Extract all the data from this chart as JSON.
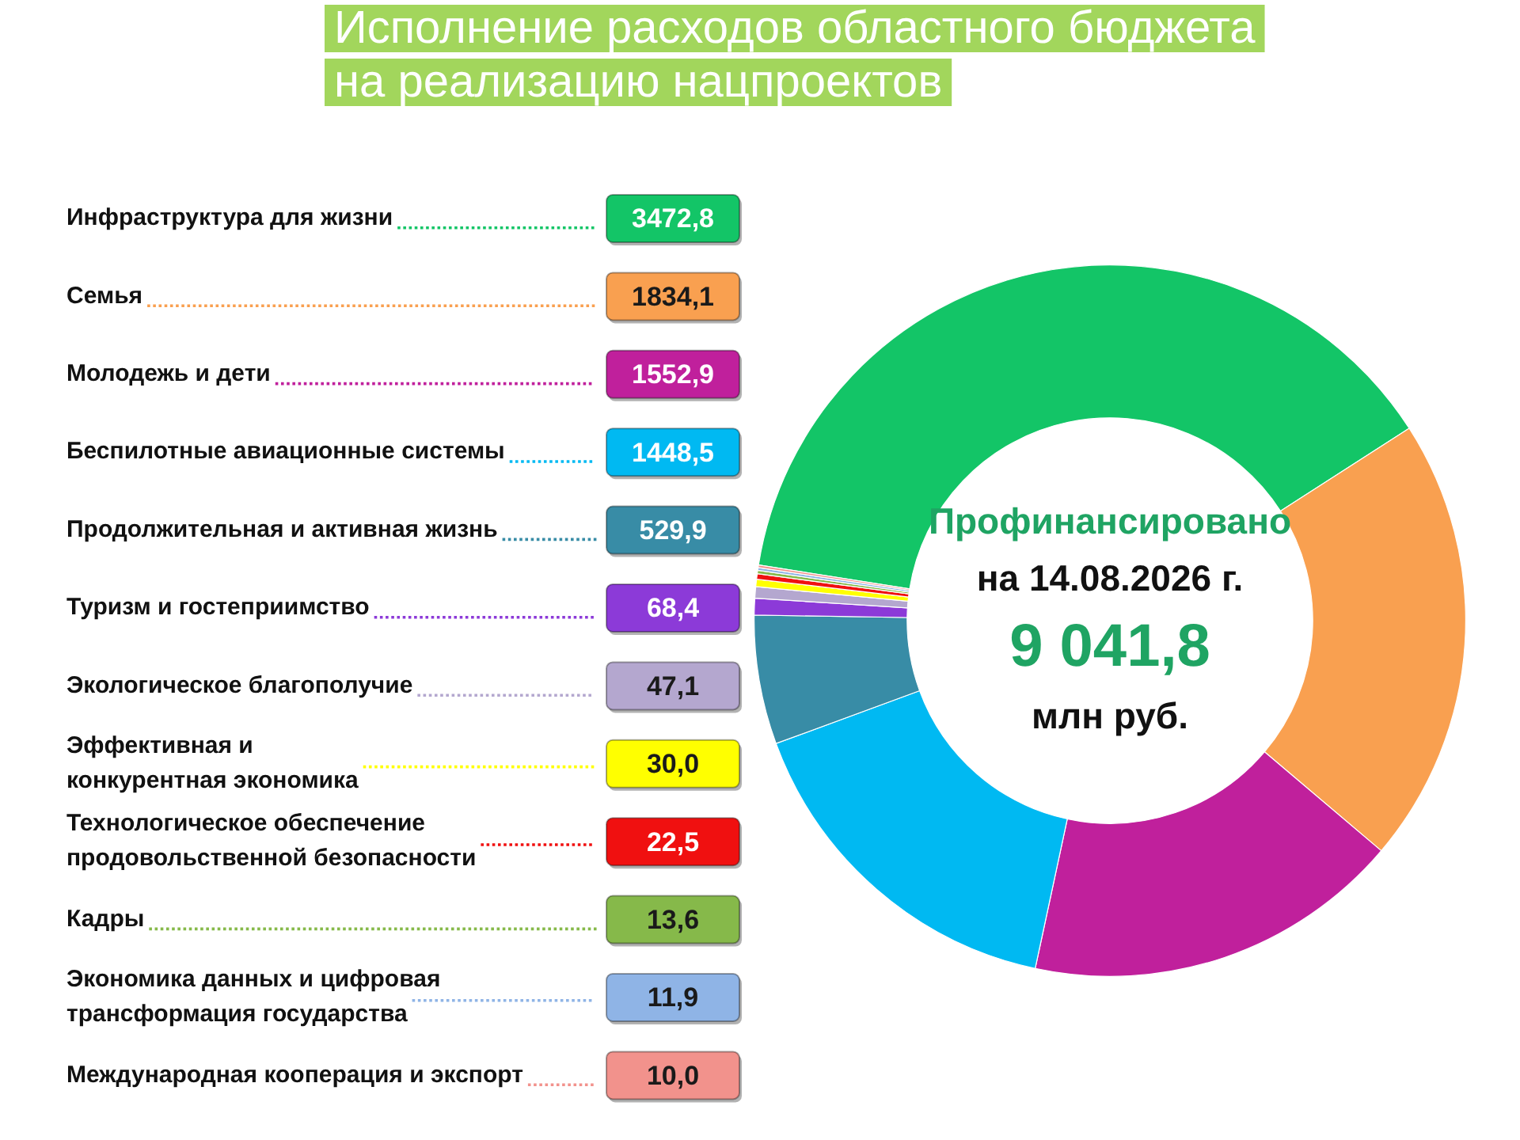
{
  "chart_data": {
    "type": "donut",
    "title": "Исполнение расходов областного бюджета на реализацию нацпроектов",
    "categories": [
      "Инфраструктура для жизни",
      "Семья",
      "Молодежь и дети",
      "Беспилотные авиационные системы",
      "Продолжительная и активная жизнь",
      "Туризм и гостеприимство",
      "Экологическое благополучие",
      "Эффективная и конкурентная экономика",
      "Технологическое обеспечение продовольственной безопасности",
      "Кадры",
      "Экономика данных и цифровая трансформация государства",
      "Международная кооперация и экспорт"
    ],
    "values": [
      3472.8,
      1834.1,
      1552.9,
      1448.5,
      529.9,
      68.4,
      47.1,
      30.0,
      22.5,
      13.6,
      11.9,
      10.0
    ],
    "value_labels": [
      "3472,8",
      "1834,1",
      "1552,9",
      "1448,5",
      "529,9",
      "68,4",
      "47,1",
      "30,0",
      "22,5",
      "13,6",
      "11,9",
      "10,0"
    ],
    "colors": [
      "#13c567",
      "#f9a050",
      "#c0209c",
      "#00b9f2",
      "#388ca6",
      "#8c3ad8",
      "#b4a7cf",
      "#ffff00",
      "#f01010",
      "#86b94a",
      "#8fb4e6",
      "#f2928c"
    ],
    "legend": "left",
    "annotations": [
      "Профинансировано",
      "на 14.08.2026 г.",
      "9 041,8",
      "млн руб."
    ]
  }
}
